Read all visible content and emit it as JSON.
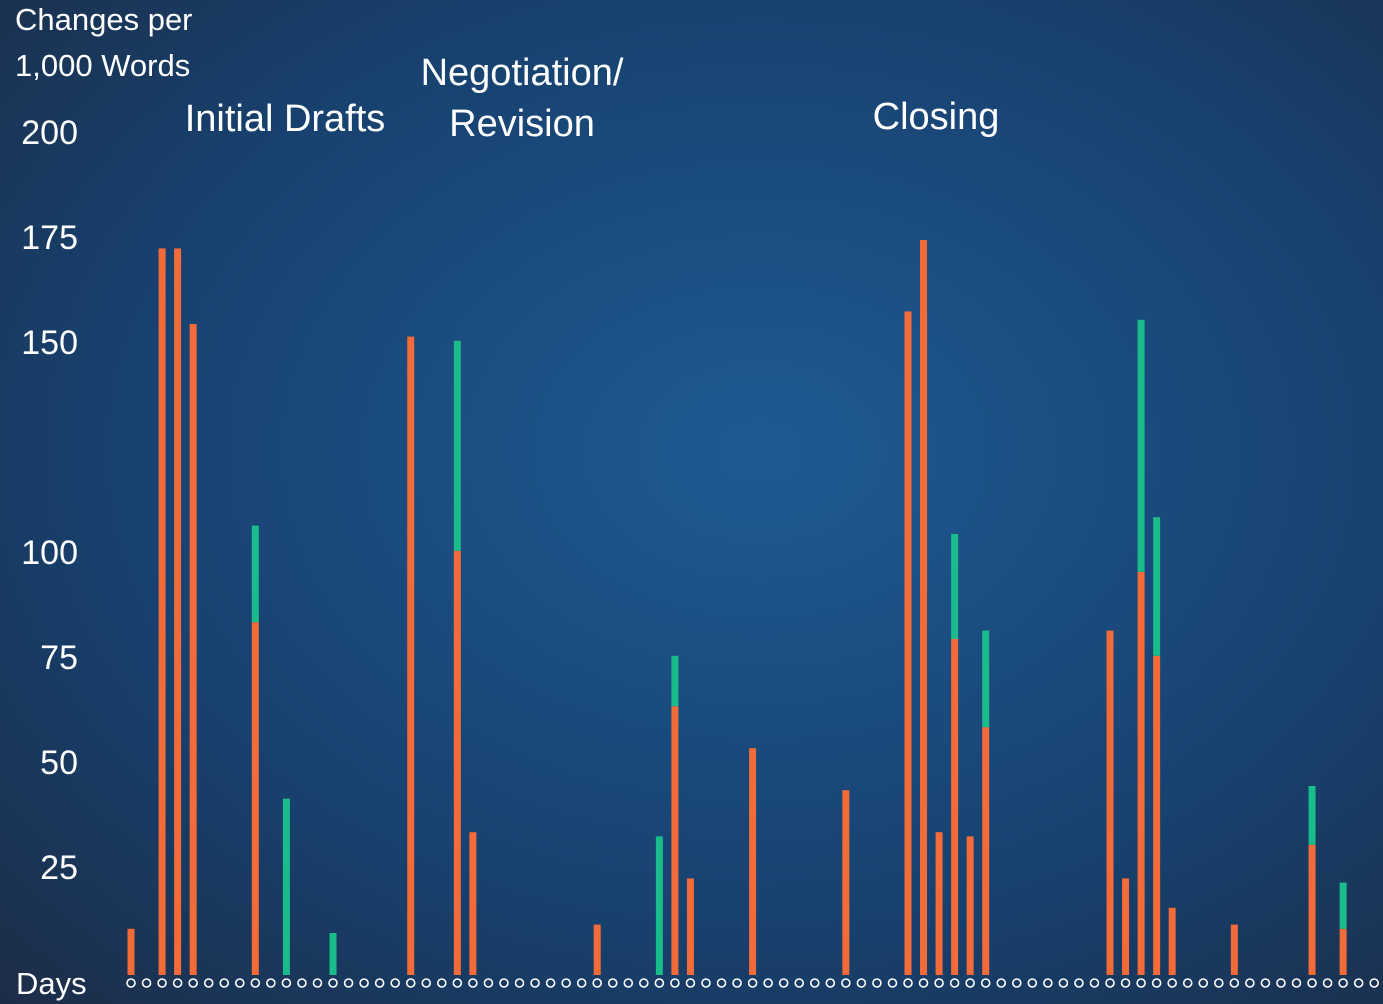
{
  "chart_data": {
    "type": "bar",
    "stacked": true,
    "ylabel": [
      "Changes per",
      "1,000 Words"
    ],
    "xlabel": "Days",
    "annotations": [
      "Initial Drafts",
      [
        "Negotiation/",
        "Revision"
      ],
      "Closing"
    ],
    "categories": [
      null,
      null,
      null,
      null,
      null,
      null,
      null,
      null,
      null,
      null,
      null,
      null,
      null,
      null,
      null,
      null,
      null,
      null,
      null,
      null,
      null,
      null,
      null,
      null,
      null,
      null,
      null,
      null,
      null,
      null,
      null,
      null,
      null,
      null,
      null,
      null,
      null,
      null,
      null,
      null,
      null,
      null,
      null,
      null,
      null,
      null,
      null,
      null,
      null,
      null,
      null,
      null,
      null,
      null,
      null,
      null,
      null,
      null,
      null,
      null,
      null,
      null,
      null,
      null,
      null,
      null,
      null,
      null,
      null,
      null,
      null,
      null,
      null,
      null,
      null,
      null,
      null,
      null,
      null,
      null,
      null
    ],
    "series": [
      {
        "color": "#f26b38",
        "values": [
          11,
          null,
          173,
          173,
          155,
          null,
          null,
          null,
          84,
          null,
          null,
          null,
          null,
          null,
          null,
          null,
          null,
          null,
          152,
          null,
          null,
          101,
          34,
          null,
          null,
          null,
          null,
          null,
          null,
          null,
          12,
          null,
          null,
          null,
          null,
          64,
          23,
          null,
          null,
          null,
          54,
          null,
          null,
          null,
          null,
          null,
          44,
          null,
          null,
          null,
          158,
          175,
          34,
          80,
          33,
          59,
          null,
          null,
          null,
          null,
          null,
          null,
          null,
          82,
          23,
          96,
          76,
          16,
          null,
          null,
          null,
          12,
          null,
          null,
          null,
          null,
          31,
          null,
          11,
          null,
          null
        ]
      },
      {
        "color": "#1abc8c",
        "values": [
          null,
          null,
          null,
          null,
          null,
          null,
          null,
          null,
          23,
          null,
          42,
          null,
          null,
          10,
          null,
          null,
          null,
          null,
          null,
          null,
          null,
          50,
          null,
          null,
          null,
          null,
          null,
          null,
          null,
          null,
          null,
          null,
          null,
          null,
          33,
          12,
          null,
          null,
          null,
          null,
          null,
          null,
          null,
          null,
          null,
          null,
          null,
          null,
          null,
          null,
          null,
          null,
          null,
          25,
          null,
          23,
          null,
          null,
          null,
          null,
          null,
          null,
          null,
          null,
          null,
          60,
          33,
          null,
          null,
          null,
          null,
          null,
          null,
          null,
          null,
          null,
          14,
          null,
          11,
          null,
          null
        ]
      }
    ],
    "ylim": [
      0,
      200
    ],
    "yticks": [
      25,
      50,
      75,
      100,
      150,
      175,
      200
    ],
    "grid": false
  }
}
